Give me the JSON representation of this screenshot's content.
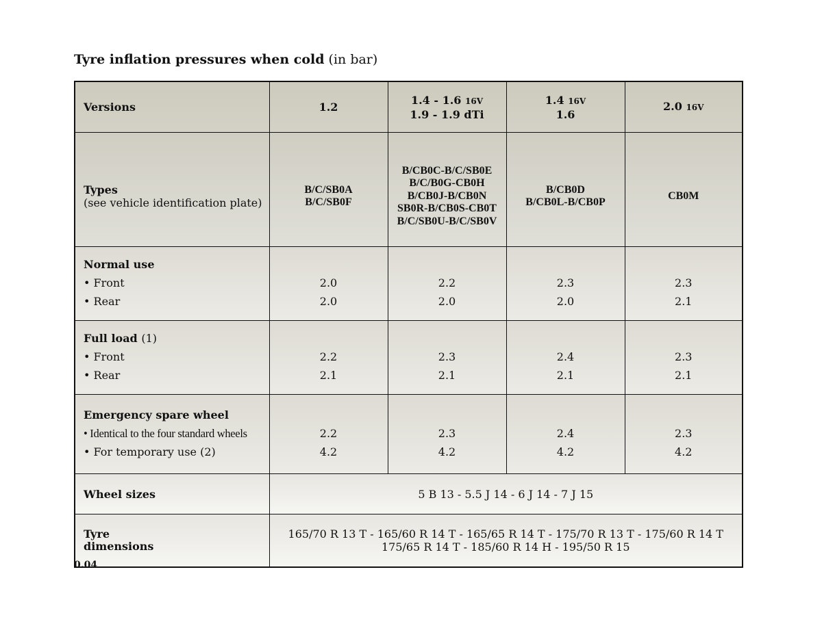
{
  "title": {
    "bold": "Tyre inflation pressures when cold",
    "unit": "(in bar)"
  },
  "header": {
    "label": "Versions",
    "cols": [
      {
        "l1": "1.2",
        "l1s": "",
        "l2": ""
      },
      {
        "l1": "1.4 - 1.6",
        "l1s": "16V",
        "l2": "1.9 - 1.9 dTi"
      },
      {
        "l1": "1.4",
        "l1s": "16V",
        "l2": "1.6"
      },
      {
        "l1": "2.0",
        "l1s": "16V",
        "l2": ""
      }
    ]
  },
  "types": {
    "label": "Types",
    "sub": "(see vehicle identification plate)",
    "cols": [
      {
        "lines": [
          "B/C/SB0A",
          "B/C/SB0F",
          "",
          "",
          ""
        ]
      },
      {
        "lines": [
          "B/CB0C-B/C/SB0E",
          "B/C/B0G-CB0H",
          "B/CB0J-B/CB0N",
          "SB0R-B/CB0S-CB0T",
          "B/C/SB0U-B/C/SB0V"
        ]
      },
      {
        "lines": [
          "B/CB0D",
          "B/CB0L-B/CB0P",
          "",
          "",
          ""
        ]
      },
      {
        "lines": [
          "CB0M",
          "",
          "",
          "",
          ""
        ]
      }
    ]
  },
  "normal": {
    "title": "Normal use",
    "front": "• Front",
    "rear": "• Rear",
    "cols": [
      {
        "front": "2.0",
        "rear": "2.0"
      },
      {
        "front": "2.2",
        "rear": "2.0"
      },
      {
        "front": "2.3",
        "rear": "2.0"
      },
      {
        "front": "2.3",
        "rear": "2.1"
      }
    ]
  },
  "full": {
    "title": "Full load",
    "note": "(1)",
    "front": "• Front",
    "rear": "• Rear",
    "cols": [
      {
        "front": "2.2",
        "rear": "2.1"
      },
      {
        "front": "2.3",
        "rear": "2.1"
      },
      {
        "front": "2.4",
        "rear": "2.1"
      },
      {
        "front": "2.3",
        "rear": "2.1"
      }
    ]
  },
  "spare": {
    "title": "Emergency spare wheel",
    "item1": "• Identical to the four standard wheels",
    "item2": "• For temporary use (2)",
    "cols": [
      {
        "a": "2.2",
        "b": "4.2"
      },
      {
        "a": "2.3",
        "b": "4.2"
      },
      {
        "a": "2.4",
        "b": "4.2"
      },
      {
        "a": "2.3",
        "b": "4.2"
      }
    ]
  },
  "wheel_sizes": {
    "label": "Wheel sizes",
    "value": "5 B 13 - 5.5 J 14 - 6 J 14 - 7 J 15"
  },
  "tyre_dims": {
    "label1": "Tyre",
    "label2": "dimensions",
    "line1": "165/70 R 13 T - 165/60 R 14 T - 165/65 R 14 T - 175/70 R 13 T - 175/60 R 14 T",
    "line2": "175/65 R 14 T - 185/60 R 14 H - 195/50 R 15"
  },
  "page_number": "0.04"
}
